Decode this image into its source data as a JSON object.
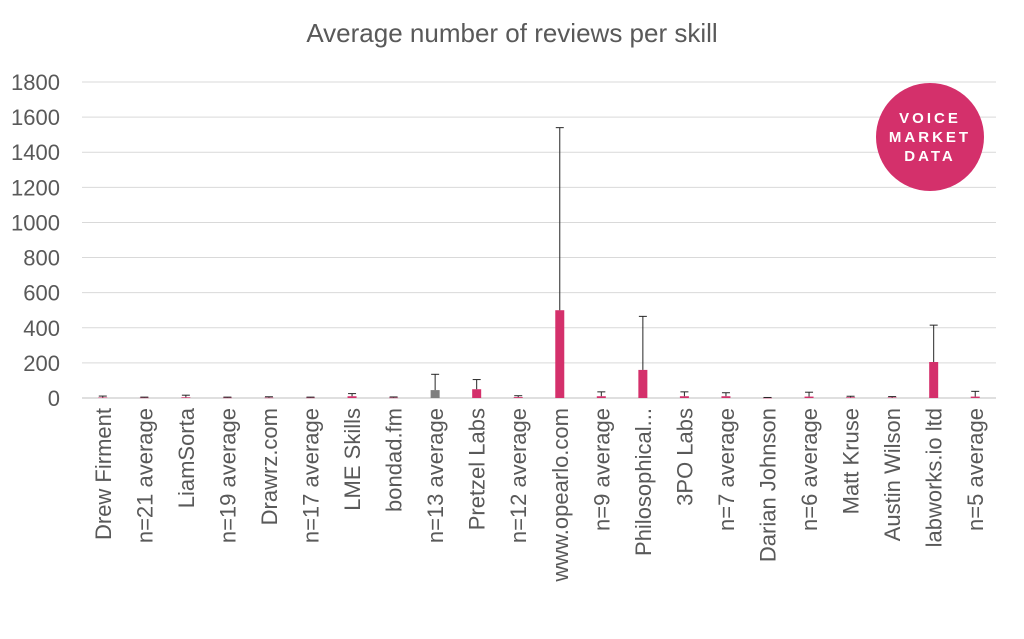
{
  "chart_data": {
    "type": "bar",
    "title": "Average number of reviews per skill",
    "categories": [
      "Drew Firment",
      "n=21 average",
      "LiamSorta",
      "n=19 average",
      "Drawrz.com",
      "n=17 average",
      "LME Skills",
      "bondad.fm",
      "n=13 average",
      "Pretzel Labs",
      "n=12 average",
      "www.opearlo.com",
      "n=9 average",
      "Philosophical...",
      "3PO Labs",
      "n=7 average",
      "Darian Johnson",
      "n=6 average",
      "Matt Kruse",
      "Austin Wilson",
      "labworks.io ltd",
      "n=5 average"
    ],
    "values": [
      3,
      2,
      4,
      2,
      2,
      2,
      10,
      2,
      45,
      50,
      5,
      500,
      10,
      160,
      10,
      10,
      1,
      8,
      4,
      3,
      205,
      8
    ],
    "error_plus": [
      8,
      3,
      12,
      3,
      5,
      3,
      15,
      4,
      90,
      55,
      8,
      1040,
      25,
      305,
      25,
      20,
      2,
      25,
      6,
      5,
      210,
      30
    ],
    "bar_colors": [
      "#d4306b",
      "#d4306b",
      "#d4306b",
      "#d4306b",
      "#d4306b",
      "#d4306b",
      "#d4306b",
      "#d4306b",
      "#7f7f7f",
      "#d4306b",
      "#d4306b",
      "#d4306b",
      "#d4306b",
      "#d4306b",
      "#d4306b",
      "#d4306b",
      "#d4306b",
      "#d4306b",
      "#d4306b",
      "#d4306b",
      "#d4306b",
      "#d4306b"
    ],
    "ylim": [
      0,
      1800
    ],
    "yticks": [
      0,
      200,
      400,
      600,
      800,
      1000,
      1200,
      1400,
      1600,
      1800
    ],
    "grid": true,
    "legend": "none",
    "xlabel": "",
    "ylabel": ""
  },
  "colors": {
    "accent": "#d4306b",
    "average_bar": "#7f7f7f",
    "grid": "#d9d9d9",
    "text": "#595959"
  },
  "logo": {
    "line1": "VOICE",
    "line2": "MARKET",
    "line3": "DATA"
  }
}
